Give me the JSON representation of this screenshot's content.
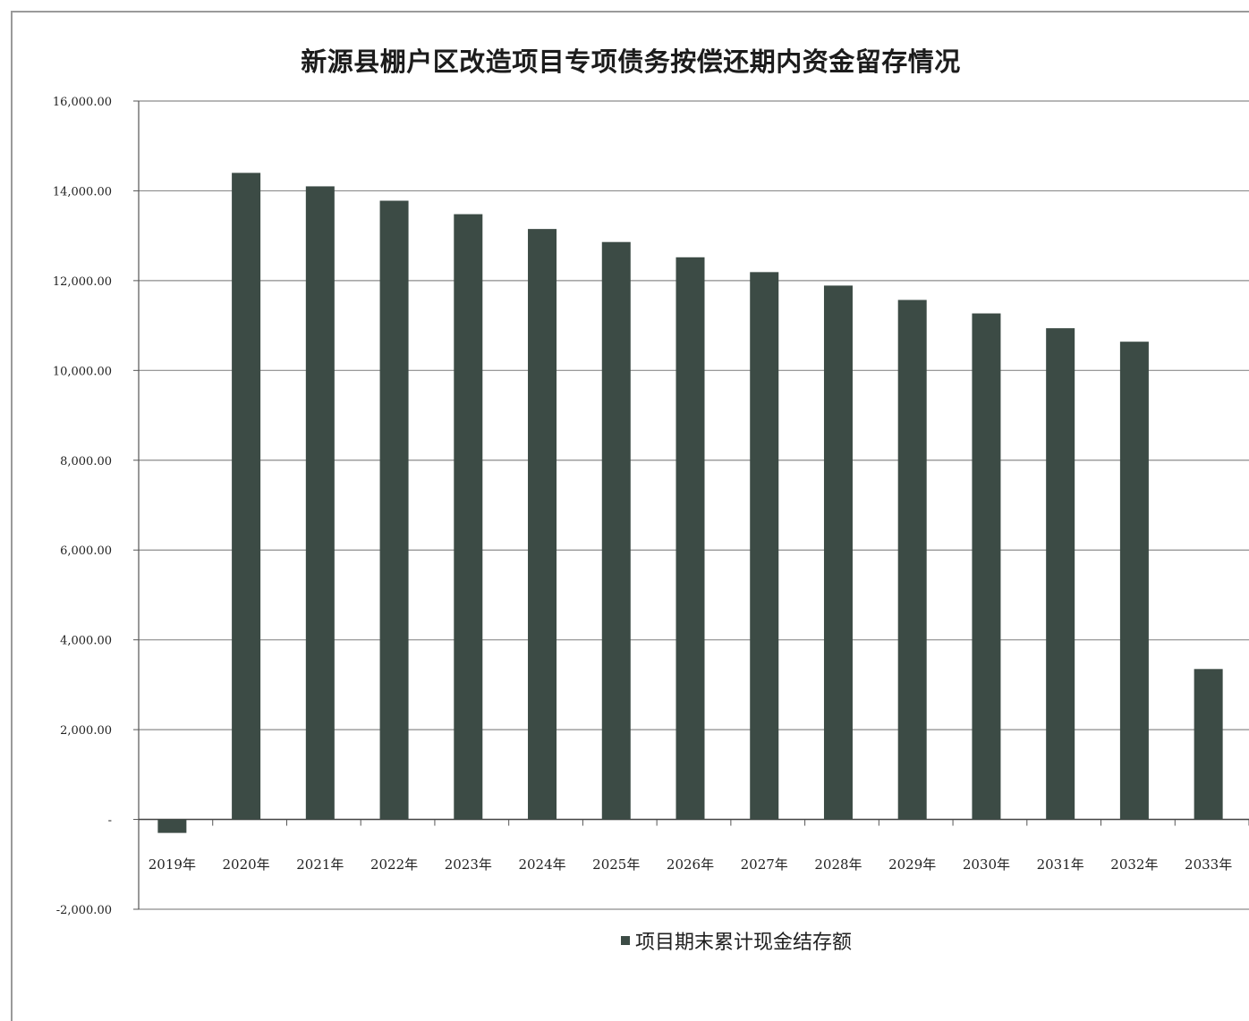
{
  "chart_data": {
    "type": "bar",
    "title": "新源县棚户区改造项目专项债务按偿还期内资金留存情况",
    "categories": [
      "2019年",
      "2020年",
      "2021年",
      "2022年",
      "2023年",
      "2024年",
      "2025年",
      "2026年",
      "2027年",
      "2028年",
      "2029年",
      "2030年",
      "2031年",
      "2032年",
      "2033年"
    ],
    "series": [
      {
        "name": "项目期末累计现金结存额",
        "values": [
          -300,
          14400,
          14100,
          13780,
          13480,
          13150,
          12860,
          12520,
          12190,
          11890,
          11570,
          11270,
          10940,
          10640,
          3350
        ]
      }
    ],
    "ylim": [
      -2000,
      16000
    ],
    "yticks": [
      -2000,
      0,
      2000,
      4000,
      6000,
      8000,
      10000,
      12000,
      14000,
      16000
    ],
    "ytick_labels": [
      "-2,000.00",
      "-",
      "2,000.00",
      "4,000.00",
      "6,000.00",
      "8,000.00",
      "10,000.00",
      "12,000.00",
      "14,000.00",
      "16,000.00"
    ],
    "grid": true,
    "legend_position": "bottom",
    "bar_color": "#3c4b45",
    "grid_color": "#8c8c8c"
  }
}
